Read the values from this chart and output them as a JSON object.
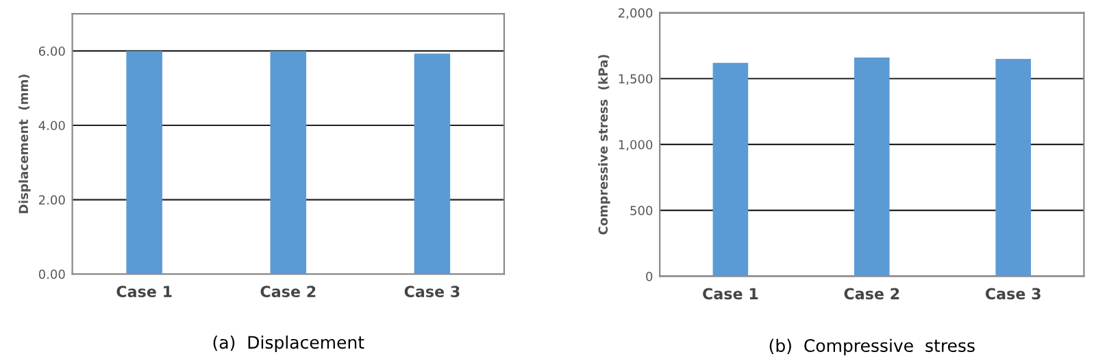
{
  "chart_data": [
    {
      "type": "bar",
      "title": "(a)  Displacement",
      "ylabel": "Displacement  (mm)",
      "categories": [
        "Case 1",
        "Case 2",
        "Case 3"
      ],
      "values": [
        6.0,
        6.0,
        5.93
      ],
      "color": "#5b9bd5",
      "ylim": [
        0,
        7
      ],
      "yticks": [
        {
          "value": 0,
          "label": "0.00"
        },
        {
          "value": 2,
          "label": "2.00"
        },
        {
          "value": 4,
          "label": "4.00"
        },
        {
          "value": 6,
          "label": "6.00"
        }
      ],
      "grid": "y"
    },
    {
      "type": "bar",
      "title": "(b)  Compressive  stress",
      "ylabel": "Compressive stress  (kPa)",
      "categories": [
        "Case 1",
        "Case 2",
        "Case 3"
      ],
      "values": [
        1620,
        1660,
        1650
      ],
      "color": "#5b9bd5",
      "ylim": [
        0,
        2000
      ],
      "yticks": [
        0,
        {
          "value": 500,
          "label": "500"
        },
        {
          "value": 1000,
          "label": "1,000"
        },
        {
          "value": 1500,
          "label": "1,500"
        },
        {
          "value": 2000,
          "label": "2,000"
        }
      ],
      "grid": "y"
    }
  ]
}
